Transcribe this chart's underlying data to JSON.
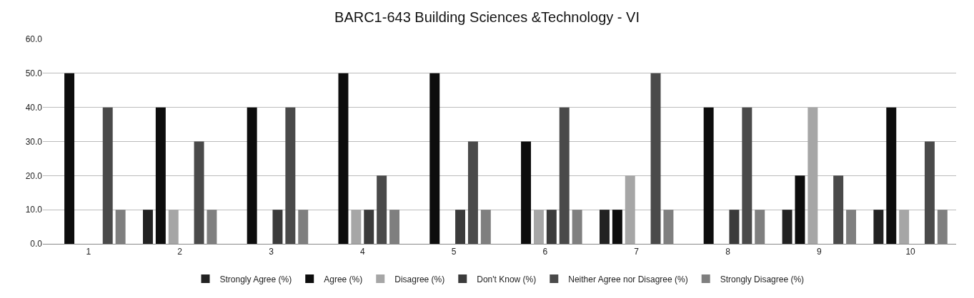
{
  "chart_data": {
    "type": "bar",
    "title": "BARC1-643 Building Sciences &Technology - VI",
    "categories": [
      "1",
      "2",
      "3",
      "4",
      "5",
      "6",
      "7",
      "8",
      "9",
      "10"
    ],
    "series": [
      {
        "name": "Strongly Agree (%)",
        "color": "#222222",
        "values": [
          0,
          10,
          0,
          0,
          0,
          0,
          10,
          0,
          10,
          10
        ]
      },
      {
        "name": "Agree (%)",
        "color": "#0d0d0d",
        "values": [
          50,
          40,
          40,
          50,
          50,
          30,
          10,
          40,
          20,
          40
        ]
      },
      {
        "name": "Disagree (%)",
        "color": "#a6a6a6",
        "values": [
          0,
          10,
          0,
          10,
          0,
          10,
          20,
          0,
          40,
          10
        ]
      },
      {
        "name": "Don't Know (%)",
        "color": "#3b3b3b",
        "values": [
          0,
          0,
          10,
          10,
          10,
          10,
          0,
          10,
          0,
          0
        ]
      },
      {
        "name": "Neither Agree nor Disagree (%)",
        "color": "#4a4a4a",
        "values": [
          40,
          30,
          40,
          20,
          30,
          40,
          50,
          40,
          20,
          30
        ]
      },
      {
        "name": "Strongly Disagree (%)",
        "color": "#7f7f7f",
        "values": [
          10,
          10,
          10,
          10,
          10,
          10,
          10,
          10,
          10,
          10
        ]
      }
    ],
    "ylim": [
      0,
      60
    ],
    "yticks": [
      {
        "value": 0,
        "label": "0.0"
      },
      {
        "value": 10,
        "label": "10.0"
      },
      {
        "value": 20,
        "label": "20.0"
      },
      {
        "value": 30,
        "label": "30.0"
      },
      {
        "value": 40,
        "label": "40.0"
      },
      {
        "value": 50,
        "label": "50.0"
      },
      {
        "value": 60,
        "label": "60.0"
      }
    ],
    "grid": "y",
    "legend": "bottom"
  }
}
